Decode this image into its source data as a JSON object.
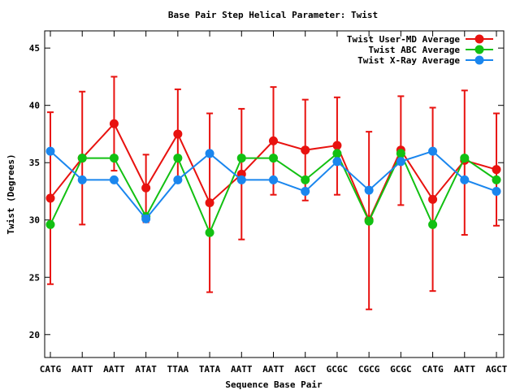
{
  "chart_data": {
    "type": "line",
    "title": "Base Pair Step Helical Parameter: Twist",
    "xlabel": "Sequence Base Pair",
    "ylabel": "Twist (Degrees)",
    "ylim": [
      18,
      46.5
    ],
    "yticks": [
      20,
      25,
      30,
      35,
      40,
      45
    ],
    "grid": false,
    "legend_position": "top-right",
    "categories": [
      "CATG",
      "AATT",
      "AATT",
      "ATAT",
      "TTAA",
      "TATA",
      "AATT",
      "AATT",
      "AGCT",
      "GCGC",
      "CGCG",
      "GCGC",
      "CATG",
      "AATT",
      "AGCT"
    ],
    "series": [
      {
        "name": "Twist User-MD Average",
        "color": "#e8120f",
        "values": [
          31.9,
          35.4,
          38.4,
          32.8,
          37.5,
          31.5,
          34.0,
          36.9,
          36.1,
          36.5,
          30.0,
          36.1,
          31.8,
          35.2,
          34.4
        ],
        "error_low": [
          24.4,
          29.6,
          34.3,
          29.8,
          33.6,
          23.7,
          28.3,
          32.2,
          31.7,
          32.2,
          22.2,
          31.3,
          23.8,
          28.7,
          29.5
        ],
        "error_high": [
          39.4,
          41.2,
          42.5,
          35.7,
          41.4,
          39.3,
          39.7,
          41.6,
          40.5,
          40.7,
          37.7,
          40.8,
          39.8,
          41.3,
          39.3
        ]
      },
      {
        "name": "Twist ABC Average",
        "color": "#12c012",
        "values": [
          29.6,
          35.4,
          35.4,
          30.3,
          35.4,
          28.9,
          35.4,
          35.4,
          33.5,
          35.8,
          29.9,
          35.8,
          29.6,
          35.4,
          33.5
        ]
      },
      {
        "name": "Twist X-Ray Average",
        "color": "#1a86ee",
        "values": [
          36.0,
          33.5,
          33.5,
          30.1,
          33.5,
          35.8,
          33.5,
          33.5,
          32.5,
          35.1,
          32.6,
          35.1,
          36.0,
          33.5,
          32.5
        ]
      }
    ]
  }
}
